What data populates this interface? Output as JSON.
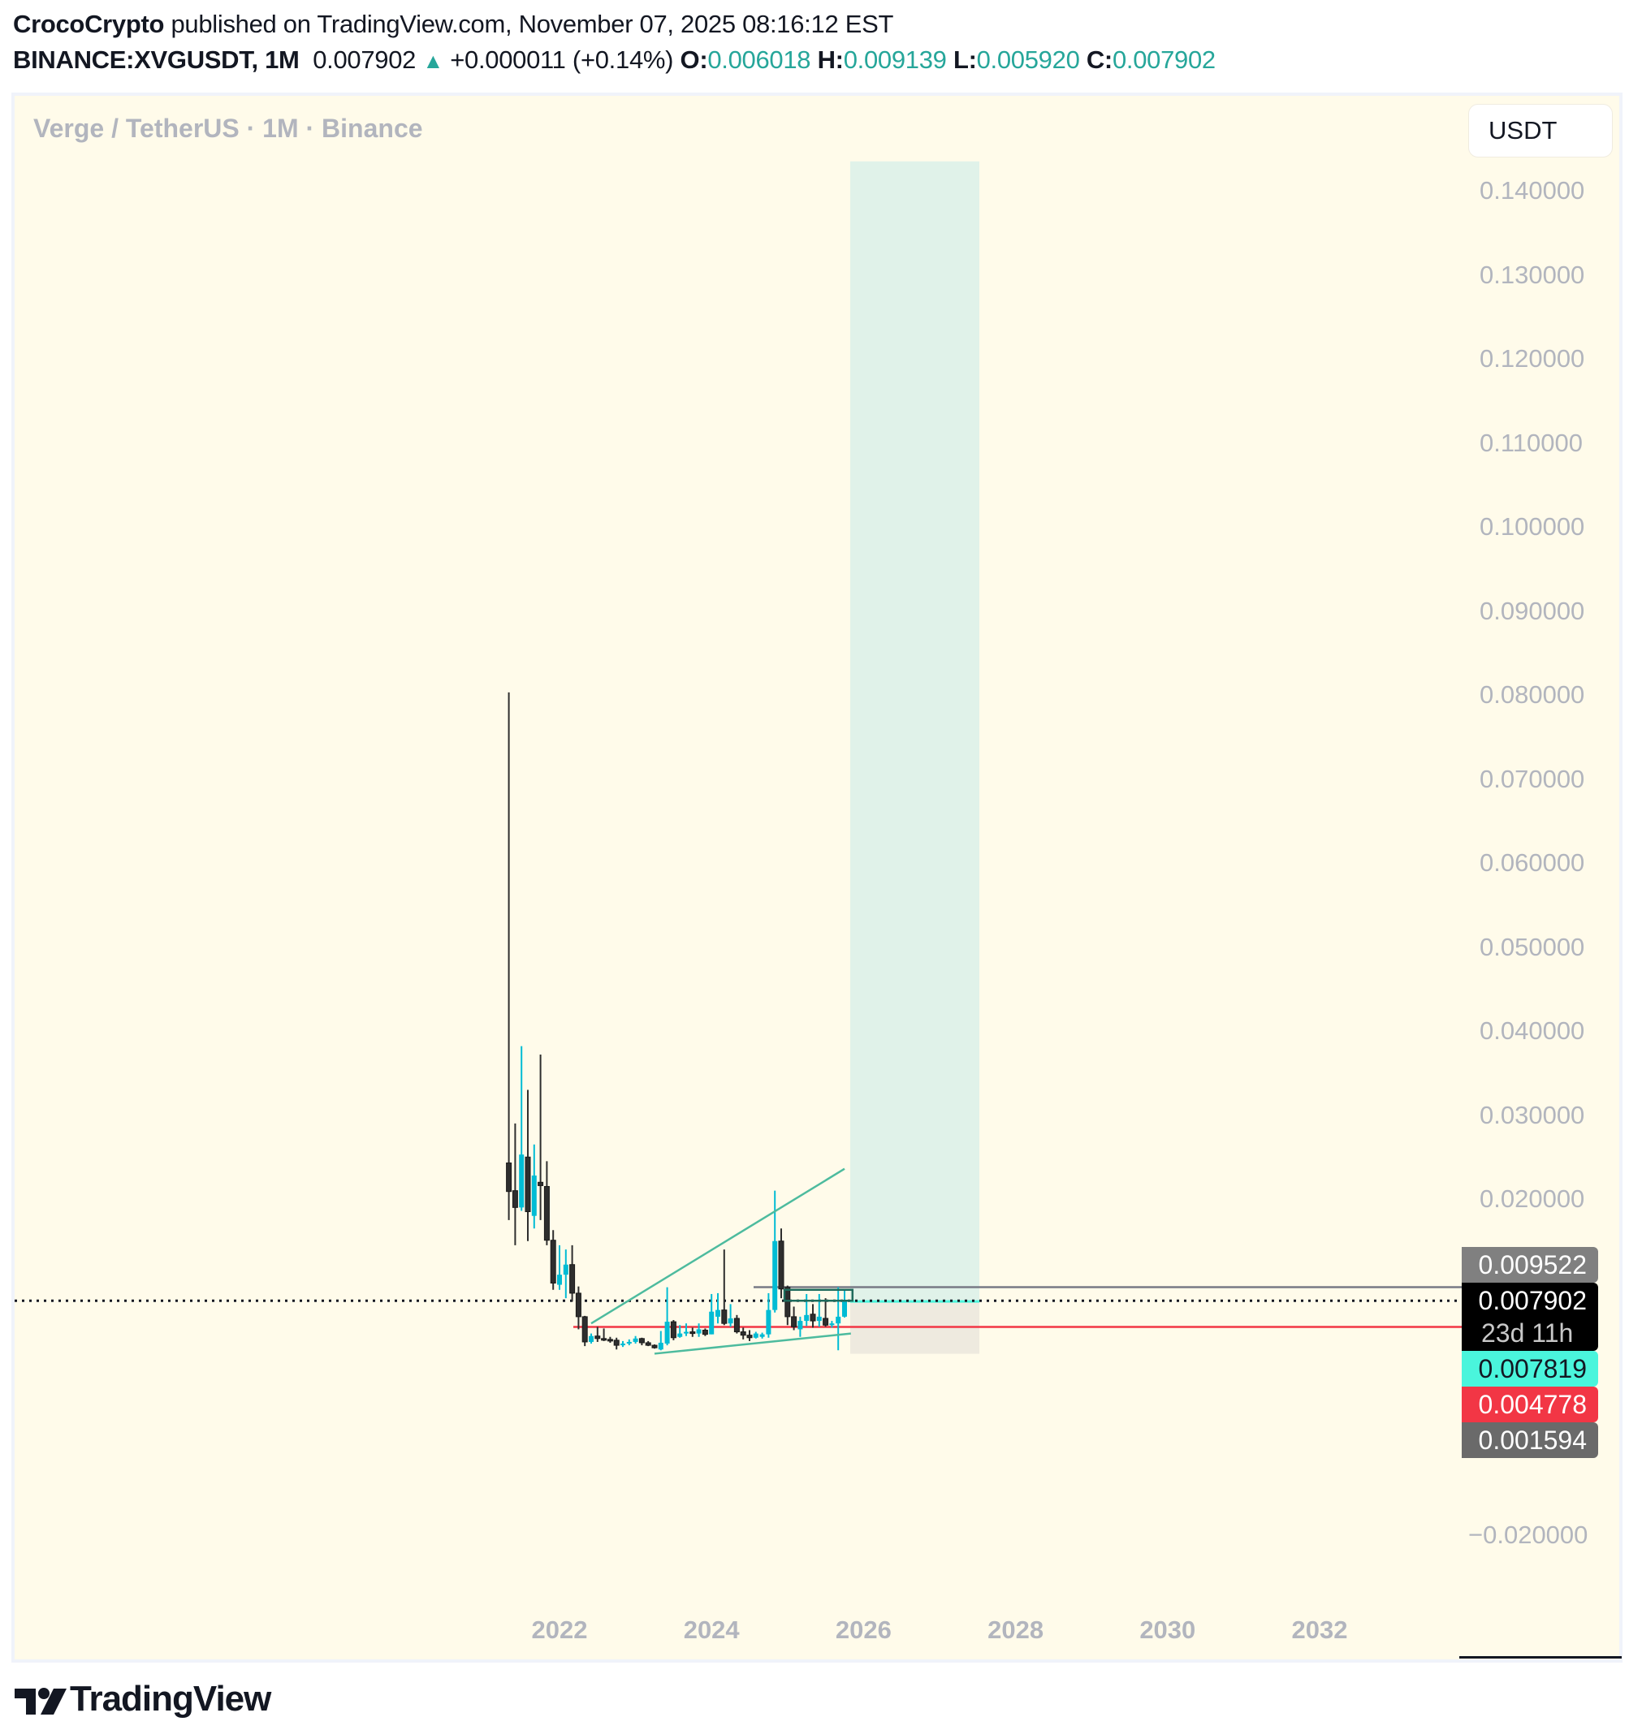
{
  "header": {
    "author": "CrocoCrypto",
    "published_text": " published on TradingView.com, November 07, 2025 08:16:12 EST",
    "symbol": "BINANCE:XVGUSDT, 1M",
    "last_price": "0.007902",
    "change_arrow": "▲",
    "change": "+0.000011 (+0.14%)",
    "ohlc": {
      "o_label": "O:",
      "o": "0.006018",
      "h_label": "H:",
      "h": "0.009139",
      "l_label": "L:",
      "l": "0.005920",
      "c_label": "C:",
      "c": "0.007902"
    }
  },
  "chart": {
    "legend_title": "Verge / TetherUS · 1M · Binance",
    "currency_button": "USDT",
    "y_axis_labels": [
      "0.140000",
      "0.130000",
      "0.120000",
      "0.110000",
      "0.100000",
      "0.090000",
      "0.080000",
      "0.070000",
      "0.060000",
      "0.050000",
      "0.040000",
      "0.030000",
      "0.020000",
      "−0.020000"
    ],
    "x_axis_labels": [
      "2022",
      "2024",
      "2026",
      "2028",
      "2030",
      "2032"
    ],
    "price_tags": [
      {
        "value": "0.009522",
        "bg": "#808080",
        "fg": "#ffffff"
      },
      {
        "value": "0.007902",
        "sub": "23d 11h",
        "bg": "#000000",
        "fg": "#ffffff"
      },
      {
        "value": "0.007819",
        "bg": "#4af5dc",
        "fg": "#131722"
      },
      {
        "value": "0.004778",
        "bg": "#f23645",
        "fg": "#ffffff"
      },
      {
        "value": "0.001594",
        "bg": "#6a6a6a",
        "fg": "#ffffff"
      }
    ],
    "colors": {
      "up": "#00bcd4",
      "down": "#2e2e2e",
      "background": "#fffbea",
      "trendline": "#4dbb9e",
      "target_zone": "#e0f2e9",
      "stop_zone": "#eeeadf",
      "support_line": "#f23645",
      "resistance_line": "#787b86"
    }
  },
  "footer": {
    "brand": "TradingView"
  },
  "chart_data": {
    "type": "candlestick",
    "title": "Verge / TetherUS · 1M · Binance",
    "symbol": "BINANCE:XVGUSDT",
    "interval": "1M",
    "xlabel": "",
    "ylabel": "USDT",
    "ylim": [
      -0.025,
      0.145
    ],
    "x_ticks": [
      "2022",
      "2024",
      "2026",
      "2028",
      "2030",
      "2032"
    ],
    "y_ticks": [
      0.14,
      0.13,
      0.12,
      0.11,
      0.1,
      0.09,
      0.08,
      0.07,
      0.06,
      0.05,
      0.04,
      0.03,
      0.02,
      0.0,
      -0.02
    ],
    "grid": false,
    "candles": [
      {
        "t": "2021-05",
        "o": 0.0243,
        "h": 0.0803,
        "l": 0.0175,
        "c": 0.0209
      },
      {
        "t": "2021-06",
        "o": 0.021,
        "h": 0.029,
        "l": 0.0145,
        "c": 0.019
      },
      {
        "t": "2021-07",
        "o": 0.019,
        "h": 0.0382,
        "l": 0.0186,
        "c": 0.0253
      },
      {
        "t": "2021-08",
        "o": 0.025,
        "h": 0.033,
        "l": 0.015,
        "c": 0.0185
      },
      {
        "t": "2021-09",
        "o": 0.018,
        "h": 0.0265,
        "l": 0.0165,
        "c": 0.0228
      },
      {
        "t": "2021-10",
        "o": 0.022,
        "h": 0.0372,
        "l": 0.0175,
        "c": 0.0216
      },
      {
        "t": "2021-11",
        "o": 0.0215,
        "h": 0.0245,
        "l": 0.0145,
        "c": 0.0151
      },
      {
        "t": "2021-12",
        "o": 0.0151,
        "h": 0.0163,
        "l": 0.0092,
        "c": 0.01
      },
      {
        "t": "2022-01",
        "o": 0.0098,
        "h": 0.0145,
        "l": 0.0092,
        "c": 0.011
      },
      {
        "t": "2022-02",
        "o": 0.011,
        "h": 0.014,
        "l": 0.0082,
        "c": 0.0122
      },
      {
        "t": "2022-03",
        "o": 0.0122,
        "h": 0.0145,
        "l": 0.0078,
        "c": 0.0088
      },
      {
        "t": "2022-04",
        "o": 0.0088,
        "h": 0.0096,
        "l": 0.0045,
        "c": 0.006
      },
      {
        "t": "2022-05",
        "o": 0.006,
        "h": 0.0061,
        "l": 0.0025,
        "c": 0.003
      },
      {
        "t": "2022-06",
        "o": 0.003,
        "h": 0.004,
        "l": 0.0028,
        "c": 0.0037
      },
      {
        "t": "2022-07",
        "o": 0.0037,
        "h": 0.0048,
        "l": 0.003,
        "c": 0.0034
      },
      {
        "t": "2022-08",
        "o": 0.0034,
        "h": 0.0046,
        "l": 0.0031,
        "c": 0.0033
      },
      {
        "t": "2022-09",
        "o": 0.0033,
        "h": 0.0036,
        "l": 0.0029,
        "c": 0.0032
      },
      {
        "t": "2022-10",
        "o": 0.0032,
        "h": 0.0035,
        "l": 0.0021,
        "c": 0.0026
      },
      {
        "t": "2022-11",
        "o": 0.0026,
        "h": 0.0031,
        "l": 0.0024,
        "c": 0.0028
      },
      {
        "t": "2022-12",
        "o": 0.0028,
        "h": 0.0033,
        "l": 0.0026,
        "c": 0.003
      },
      {
        "t": "2023-01",
        "o": 0.003,
        "h": 0.0037,
        "l": 0.0028,
        "c": 0.0034
      },
      {
        "t": "2023-02",
        "o": 0.0034,
        "h": 0.0035,
        "l": 0.0026,
        "c": 0.0029
      },
      {
        "t": "2023-03",
        "o": 0.0029,
        "h": 0.0031,
        "l": 0.0025,
        "c": 0.0026
      },
      {
        "t": "2023-04",
        "o": 0.0026,
        "h": 0.0027,
        "l": 0.0022,
        "c": 0.0023
      },
      {
        "t": "2023-05",
        "o": 0.0021,
        "h": 0.0043,
        "l": 0.002,
        "c": 0.0029
      },
      {
        "t": "2023-06",
        "o": 0.0028,
        "h": 0.0095,
        "l": 0.0026,
        "c": 0.0054
      },
      {
        "t": "2023-07",
        "o": 0.0054,
        "h": 0.0056,
        "l": 0.0032,
        "c": 0.0035
      },
      {
        "t": "2023-08",
        "o": 0.0036,
        "h": 0.005,
        "l": 0.0035,
        "c": 0.004
      },
      {
        "t": "2023-09",
        "o": 0.004,
        "h": 0.0052,
        "l": 0.0037,
        "c": 0.0042
      },
      {
        "t": "2023-10",
        "o": 0.0042,
        "h": 0.0047,
        "l": 0.0036,
        "c": 0.004
      },
      {
        "t": "2023-11",
        "o": 0.004,
        "h": 0.0052,
        "l": 0.0036,
        "c": 0.0045
      },
      {
        "t": "2023-12",
        "o": 0.0044,
        "h": 0.0046,
        "l": 0.0037,
        "c": 0.0039
      },
      {
        "t": "2024-01",
        "o": 0.0039,
        "h": 0.0087,
        "l": 0.0039,
        "c": 0.0066
      },
      {
        "t": "2024-02",
        "o": 0.006,
        "h": 0.0088,
        "l": 0.0052,
        "c": 0.0068
      },
      {
        "t": "2024-03",
        "o": 0.0068,
        "h": 0.014,
        "l": 0.005,
        "c": 0.0052
      },
      {
        "t": "2024-04",
        "o": 0.0052,
        "h": 0.0075,
        "l": 0.0048,
        "c": 0.0058
      },
      {
        "t": "2024-05",
        "o": 0.0058,
        "h": 0.0062,
        "l": 0.004,
        "c": 0.0042
      },
      {
        "t": "2024-06",
        "o": 0.0042,
        "h": 0.0047,
        "l": 0.0033,
        "c": 0.0038
      },
      {
        "t": "2024-07",
        "o": 0.0038,
        "h": 0.0044,
        "l": 0.0031,
        "c": 0.0035
      },
      {
        "t": "2024-08",
        "o": 0.0035,
        "h": 0.0042,
        "l": 0.0034,
        "c": 0.004
      },
      {
        "t": "2024-09",
        "o": 0.0036,
        "h": 0.0041,
        "l": 0.0034,
        "c": 0.0039
      },
      {
        "t": "2024-10",
        "o": 0.0039,
        "h": 0.0088,
        "l": 0.0035,
        "c": 0.0068
      },
      {
        "t": "2024-11",
        "o": 0.0068,
        "h": 0.021,
        "l": 0.0065,
        "c": 0.015
      },
      {
        "t": "2024-12",
        "o": 0.015,
        "h": 0.0165,
        "l": 0.0082,
        "c": 0.0093
      },
      {
        "t": "2025-01",
        "o": 0.0095,
        "h": 0.0097,
        "l": 0.005,
        "c": 0.006
      },
      {
        "t": "2025-02",
        "o": 0.006,
        "h": 0.0072,
        "l": 0.0044,
        "c": 0.0048
      },
      {
        "t": "2025-03",
        "o": 0.0045,
        "h": 0.006,
        "l": 0.0036,
        "c": 0.0055
      },
      {
        "t": "2025-04",
        "o": 0.0055,
        "h": 0.0087,
        "l": 0.0049,
        "c": 0.0062
      },
      {
        "t": "2025-05",
        "o": 0.0063,
        "h": 0.0075,
        "l": 0.0047,
        "c": 0.0055
      },
      {
        "t": "2025-06",
        "o": 0.0055,
        "h": 0.0087,
        "l": 0.0048,
        "c": 0.006
      },
      {
        "t": "2025-07",
        "o": 0.0058,
        "h": 0.0082,
        "l": 0.0048,
        "c": 0.005
      },
      {
        "t": "2025-08",
        "o": 0.005,
        "h": 0.0055,
        "l": 0.0047,
        "c": 0.0052
      },
      {
        "t": "2025-09",
        "o": 0.0052,
        "h": 0.0095,
        "l": 0.002,
        "c": 0.006
      },
      {
        "t": "2025-10",
        "o": 0.006,
        "h": 0.0091,
        "l": 0.0059,
        "c": 0.0079
      }
    ],
    "annotations": [
      {
        "type": "trendline",
        "label": "upper channel",
        "from": {
          "t": "2022-06",
          "p": 0.0052
        },
        "to": {
          "t": "2025-10",
          "p": 0.0236
        }
      },
      {
        "type": "trendline",
        "label": "lower channel",
        "from": {
          "t": "2023-04",
          "p": 0.0016
        },
        "to": {
          "t": "2025-11",
          "p": 0.004
        }
      },
      {
        "type": "hline",
        "label": "support",
        "price": 0.004778,
        "color": "#f23645"
      },
      {
        "type": "hline",
        "label": "resistance",
        "price": 0.009522,
        "color": "#787b86"
      },
      {
        "type": "hline",
        "label": "last price",
        "price": 0.007902,
        "style": "dotted"
      },
      {
        "type": "rectangle",
        "label": "consolidation box",
        "from": {
          "t": "2024-12",
          "p": 0.0092
        },
        "to": {
          "t": "2025-11",
          "p": 0.0079
        }
      },
      {
        "type": "long_position",
        "entry": 0.007819,
        "target": 0.1435,
        "stop": 0.001594,
        "from": "2025-11",
        "to": "2027-06"
      }
    ]
  }
}
